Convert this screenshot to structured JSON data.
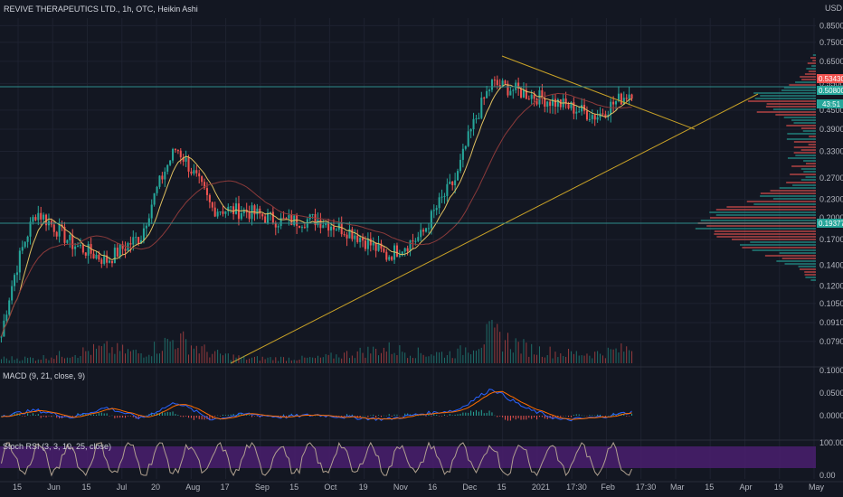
{
  "header": {
    "title": "REVIVE THERAPEUTICS LTD., 1h, OTC, Heikin Ashi",
    "currency": "USD"
  },
  "colors": {
    "background": "#131722",
    "grid": "#1e2230",
    "up": "#26a69a",
    "down": "#ef5350",
    "trendline": "#c9a227",
    "hline": "#2e8b8b",
    "ma_fast": "#e0c060",
    "ma_slow": "#8b3a3a",
    "macd_line": "#2962ff",
    "signal_line": "#ff6d00",
    "stoch_k": "#b0a090",
    "stoch_band": "#4a1f6e"
  },
  "price_labels": {
    "current": "0.534300",
    "last": "0.508000",
    "countdown": "43:51",
    "level": "0.193777"
  },
  "indicators": {
    "macd": "MACD (9, 21, close, 9)",
    "stoch": "Stoch RSI (3, 3, 10, 25, close)"
  },
  "chart_data": [
    {
      "type": "candlestick",
      "title": "REVIVE THERAPEUTICS LTD., 1h, OTC, Heikin Ashi",
      "y_scale": "log",
      "ylim": [
        0.067,
        0.9
      ],
      "y_ticks": [
        "0.850000",
        "0.750000",
        "0.650000",
        "0.550000",
        "0.450000",
        "0.390000",
        "0.330000",
        "0.270000",
        "0.230000",
        "0.200000",
        "0.170000",
        "0.140000",
        "0.120000",
        "0.105000",
        "0.091000",
        "0.079000"
      ],
      "x_ticks": [
        "15",
        "Jun",
        "15",
        "Jul",
        "20",
        "Aug",
        "17",
        "Sep",
        "15",
        "Oct",
        "19",
        "Nov",
        "16",
        "Dec",
        "15",
        "2021",
        "17:30",
        "Feb",
        "17:30",
        "Mar",
        "15",
        "Apr",
        "19",
        "May"
      ],
      "series": [
        {
          "name": "",
          "values": [
            {
              "x": "May 15",
              "y": 0.082
            },
            {
              "x": "Jun",
              "y": 0.21
            },
            {
              "x": "Jun 15",
              "y": 0.165
            },
            {
              "x": "Jul",
              "y": 0.145
            },
            {
              "x": "Jul 20",
              "y": 0.175
            },
            {
              "x": "Aug",
              "y": 0.34
            },
            {
              "x": "Aug 17",
              "y": 0.215
            },
            {
              "x": "Sep",
              "y": 0.21
            },
            {
              "x": "Sep 15",
              "y": 0.195
            },
            {
              "x": "Oct",
              "y": 0.198
            },
            {
              "x": "Oct 19",
              "y": 0.18
            },
            {
              "x": "Nov",
              "y": 0.15
            },
            {
              "x": "Nov 16",
              "y": 0.175
            },
            {
              "x": "Dec",
              "y": 0.27
            },
            {
              "x": "Dec 15",
              "y": 0.55
            },
            {
              "x": "2021",
              "y": 0.51
            },
            {
              "x": "Jan 17:30",
              "y": 0.47
            },
            {
              "x": "Feb",
              "y": 0.43
            },
            {
              "x": "Feb 17:30",
              "y": 0.52
            }
          ]
        }
      ]
    },
    {
      "type": "bar",
      "title": "Volume",
      "values": [
        1,
        1,
        2,
        3,
        2,
        5,
        2,
        1,
        1,
        1,
        2,
        3,
        2,
        2,
        6,
        3,
        2,
        2,
        3
      ]
    },
    {
      "type": "line",
      "title": "MACD (9, 21, close, 9)",
      "y_ticks": [
        "0.100000",
        "0.050000",
        "0.000000"
      ],
      "series": [
        {
          "name": "MACD",
          "values": [
            0,
            0.012,
            -0.004,
            0.018,
            -0.006,
            0.03,
            -0.008,
            0.004,
            -0.003,
            0.002,
            -0.004,
            -0.008,
            0.004,
            0.012,
            0.06,
            0.015,
            -0.01,
            -0.004,
            0.008
          ]
        }
      ]
    },
    {
      "type": "line",
      "title": "Stoch RSI (3, 3, 10, 25, close)",
      "y_ticks": [
        "100.00",
        "0.00"
      ],
      "ylim": [
        0,
        100
      ],
      "series": [
        {
          "name": "K",
          "values": [
            20,
            85,
            15,
            90,
            10,
            80,
            25,
            75,
            15,
            85,
            20,
            70,
            30,
            90,
            10,
            80,
            20,
            85,
            60
          ]
        }
      ]
    }
  ]
}
